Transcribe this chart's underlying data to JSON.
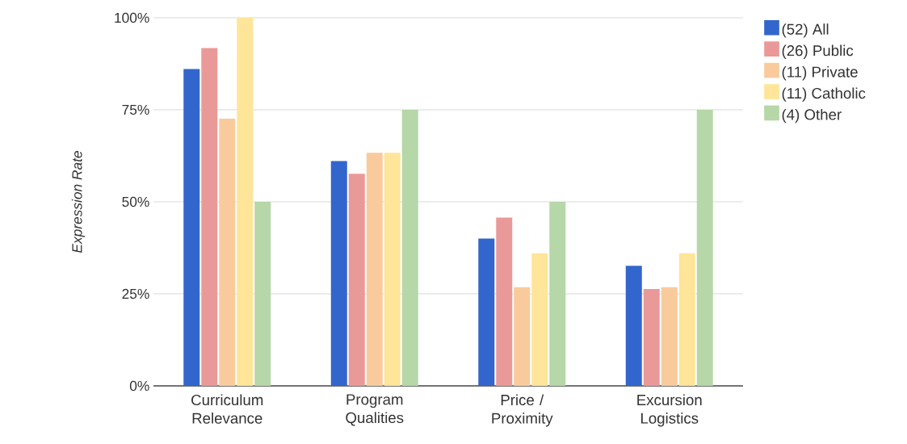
{
  "chart_data": {
    "type": "bar",
    "ylabel": "Expression Rate",
    "categories": [
      "Curriculum Relevance",
      "Program Qualities",
      "Price / Proximity",
      "Excursion Logistics"
    ],
    "series": [
      {
        "name": "(52) All",
        "color": "#3366cc",
        "values": [
          86.1,
          61.1,
          40.0,
          32.6
        ]
      },
      {
        "name": "(26) Public",
        "color": "#ea9999",
        "values": [
          91.8,
          57.6,
          45.7,
          26.3
        ]
      },
      {
        "name": "(11) Private",
        "color": "#f9cb9c",
        "values": [
          72.6,
          63.3,
          26.8,
          26.8
        ]
      },
      {
        "name": "(11) Catholic",
        "color": "#ffe599",
        "values": [
          100,
          63.3,
          36.0,
          36.0
        ]
      },
      {
        "name": "(4) Other",
        "color": "#b6d7a8",
        "values": [
          50,
          75,
          50,
          75
        ]
      }
    ],
    "ylim": [
      0,
      100
    ],
    "yticks": [
      {
        "value": 0,
        "label": "0%"
      },
      {
        "value": 25,
        "label": "25%"
      },
      {
        "value": 50,
        "label": "50%"
      },
      {
        "value": 75,
        "label": "75%"
      },
      {
        "value": 100,
        "label": "100%"
      }
    ],
    "grid": "y",
    "legend": "right"
  }
}
